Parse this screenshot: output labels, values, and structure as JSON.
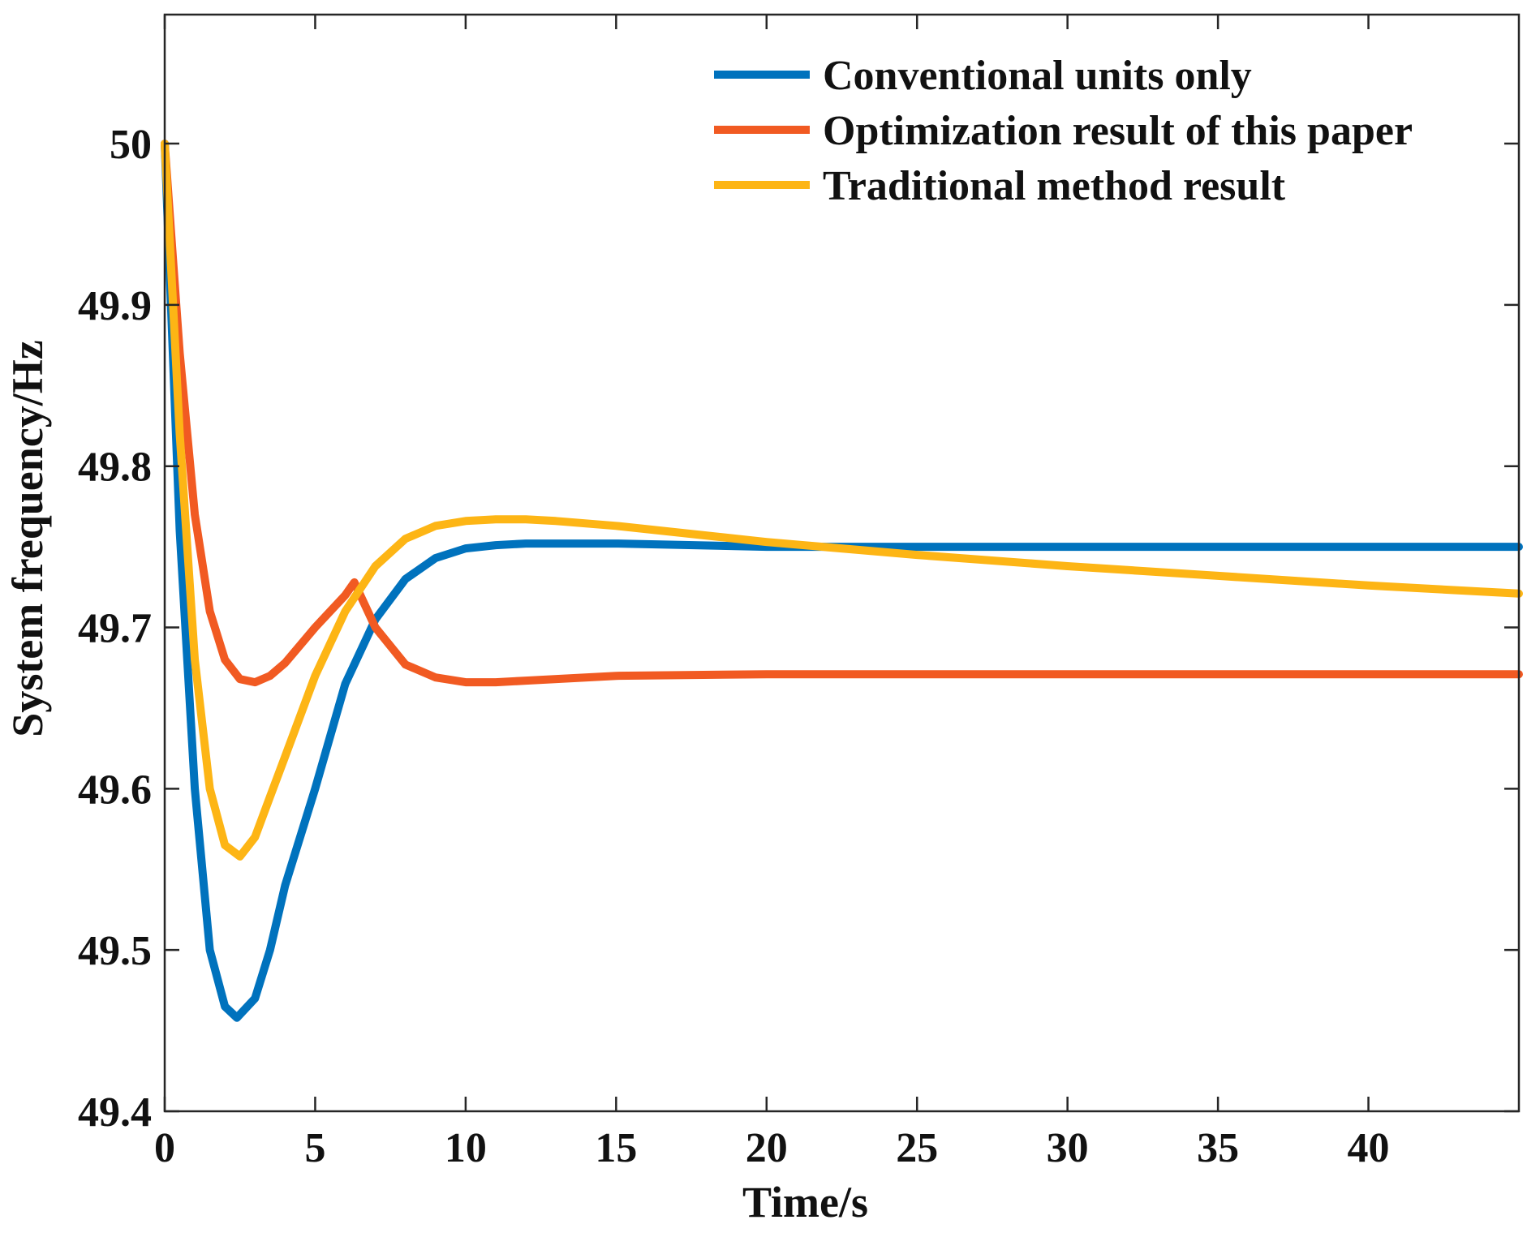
{
  "chart_data": {
    "type": "line",
    "title": "",
    "xlabel": "Time/s",
    "ylabel": "System frequency/Hz",
    "xlim": [
      0,
      45
    ],
    "ylim": [
      49.4,
      50.08
    ],
    "xticks": [
      0,
      5,
      10,
      15,
      20,
      25,
      30,
      35,
      40
    ],
    "xtick_labels": [
      "0",
      "5",
      "10",
      "15",
      "20",
      "25",
      "30",
      "35",
      "40"
    ],
    "yticks": [
      49.4,
      49.5,
      49.6,
      49.7,
      49.8,
      49.9,
      50.0
    ],
    "ytick_labels": [
      "49.4",
      "49.5",
      "49.6",
      "49.7",
      "49.8",
      "49.9",
      "50"
    ],
    "grid": false,
    "legend_position": "top-right",
    "series": [
      {
        "name": "Conventional units only",
        "color": "#0072BD",
        "x": [
          0,
          0.5,
          1.0,
          1.5,
          2.0,
          2.4,
          3.0,
          3.5,
          4.0,
          5.0,
          6.0,
          7.0,
          8.0,
          9.0,
          10.0,
          11.0,
          12.0,
          13.0,
          15.0,
          20.0,
          25.0,
          30.0,
          35.0,
          40.0,
          45.0
        ],
        "values": [
          50.0,
          49.76,
          49.6,
          49.5,
          49.465,
          49.458,
          49.47,
          49.5,
          49.54,
          49.6,
          49.665,
          49.705,
          49.73,
          49.743,
          49.749,
          49.751,
          49.752,
          49.752,
          49.752,
          49.75,
          49.75,
          49.75,
          49.75,
          49.75,
          49.75
        ]
      },
      {
        "name": "Optimization result of this paper",
        "color": "#F15A22",
        "x": [
          0,
          0.5,
          1.0,
          1.5,
          2.0,
          2.5,
          3.0,
          3.5,
          4.0,
          5.0,
          6.0,
          6.3,
          7.0,
          8.0,
          9.0,
          10.0,
          11.0,
          12.0,
          15.0,
          20.0,
          25.0,
          30.0,
          35.0,
          40.0,
          45.0
        ],
        "values": [
          50.0,
          49.87,
          49.77,
          49.71,
          49.68,
          49.668,
          49.666,
          49.67,
          49.678,
          49.7,
          49.72,
          49.728,
          49.7,
          49.677,
          49.669,
          49.666,
          49.666,
          49.667,
          49.67,
          49.671,
          49.671,
          49.671,
          49.671,
          49.671,
          49.671
        ]
      },
      {
        "name": "Traditional method result",
        "color": "#FDB515",
        "x": [
          0,
          0.5,
          1.0,
          1.5,
          2.0,
          2.5,
          3.0,
          3.5,
          4.0,
          5.0,
          6.0,
          7.0,
          8.0,
          9.0,
          10.0,
          11.0,
          12.0,
          13.0,
          15.0,
          20.0,
          25.0,
          30.0,
          35.0,
          40.0,
          45.0
        ],
        "values": [
          50.0,
          49.82,
          49.68,
          49.6,
          49.565,
          49.558,
          49.57,
          49.595,
          49.62,
          49.67,
          49.71,
          49.738,
          49.755,
          49.763,
          49.766,
          49.767,
          49.767,
          49.766,
          49.763,
          49.753,
          49.745,
          49.738,
          49.732,
          49.726,
          49.721
        ]
      }
    ]
  }
}
